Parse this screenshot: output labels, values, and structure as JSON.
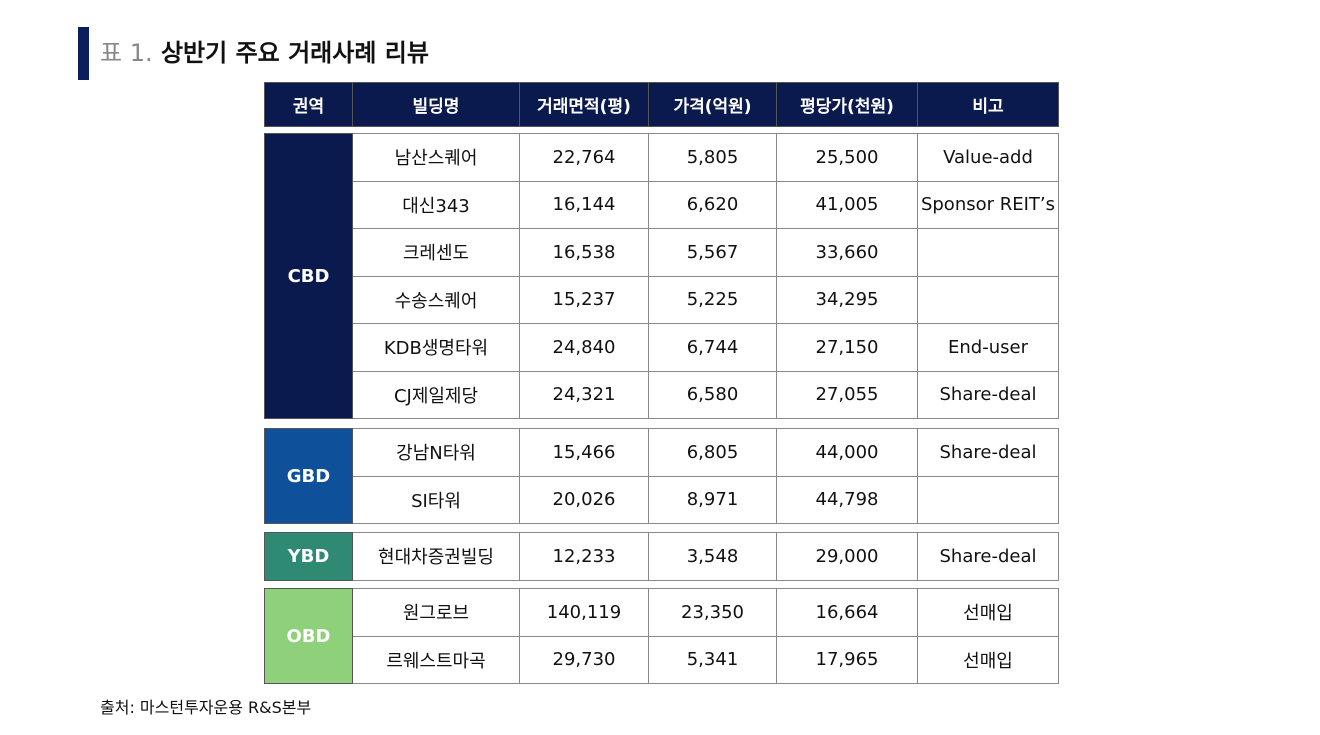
{
  "title": {
    "prefix": "표 1.",
    "text": "상반기 주요 거래사례 리뷰"
  },
  "headers": [
    "권역",
    "빌딩명",
    "거래면적(평)",
    "가격(억원)",
    "평당가(천원)",
    "비고"
  ],
  "groups": [
    {
      "region": "CBD",
      "color": "#0a1a4f",
      "rows": [
        [
          "남산스퀘어",
          "22,764",
          "5,805",
          "25,500",
          "Value-add"
        ],
        [
          "대신343",
          "16,144",
          "6,620",
          "41,005",
          "Sponsor REIT’s"
        ],
        [
          "크레센도",
          "16,538",
          "5,567",
          "33,660",
          ""
        ],
        [
          "수송스퀘어",
          "15,237",
          "5,225",
          "34,295",
          ""
        ],
        [
          "KDB생명타워",
          "24,840",
          "6,744",
          "27,150",
          "End-user"
        ],
        [
          "CJ제일제당",
          "24,321",
          "6,580",
          "27,055",
          "Share-deal"
        ]
      ]
    },
    {
      "region": "GBD",
      "color": "#0f509a",
      "rows": [
        [
          "강남N타워",
          "15,466",
          "6,805",
          "44,000",
          "Share-deal"
        ],
        [
          "SI타워",
          "20,026",
          "8,971",
          "44,798",
          ""
        ]
      ]
    },
    {
      "region": "YBD",
      "color": "#2e8a72",
      "rows": [
        [
          "현대차증권빌딩",
          "12,233",
          "3,548",
          "29,000",
          "Share-deal"
        ]
      ]
    },
    {
      "region": "OBD",
      "color": "#8fd07a",
      "rows": [
        [
          "원그로브",
          "140,119",
          "23,350",
          "16,664",
          "선매입"
        ],
        [
          "르웨스트마곡",
          "29,730",
          "5,341",
          "17,965",
          "선매입"
        ]
      ]
    }
  ],
  "source": "출처:  마스턴투자운용 R&S본부"
}
